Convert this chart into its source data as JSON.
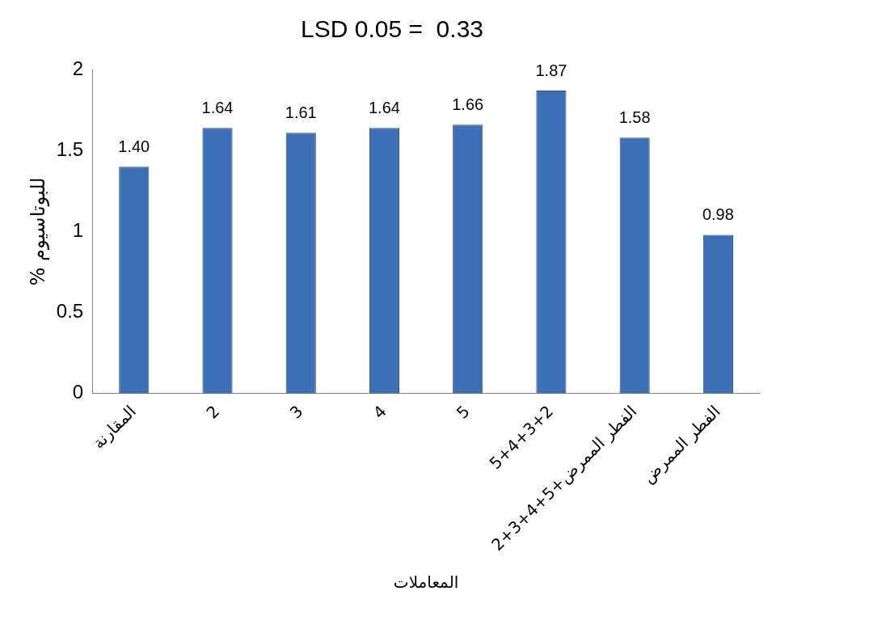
{
  "chart_data": {
    "type": "bar",
    "title": "LSD 0.05 =  0.33",
    "xlabel": "المعاملات",
    "ylabel": "% للبوتاسيوم",
    "categories": [
      "المقارنة",
      "2",
      "3",
      "4",
      "5",
      "5+4+3+2",
      "الفطر الممرض+5+4+3+2",
      "الفطر الممرض"
    ],
    "values": [
      1.4,
      1.64,
      1.61,
      1.64,
      1.66,
      1.87,
      1.58,
      0.98
    ],
    "value_labels": [
      "1.40",
      "1.64",
      "1.61",
      "1.64",
      "1.66",
      "1.87",
      "1.58",
      "0.98"
    ],
    "color": "#3d6fb6",
    "ylim": [
      0,
      2
    ],
    "yticks": [
      0,
      0.5,
      1,
      1.5,
      2
    ],
    "grid": false,
    "legend": false
  }
}
